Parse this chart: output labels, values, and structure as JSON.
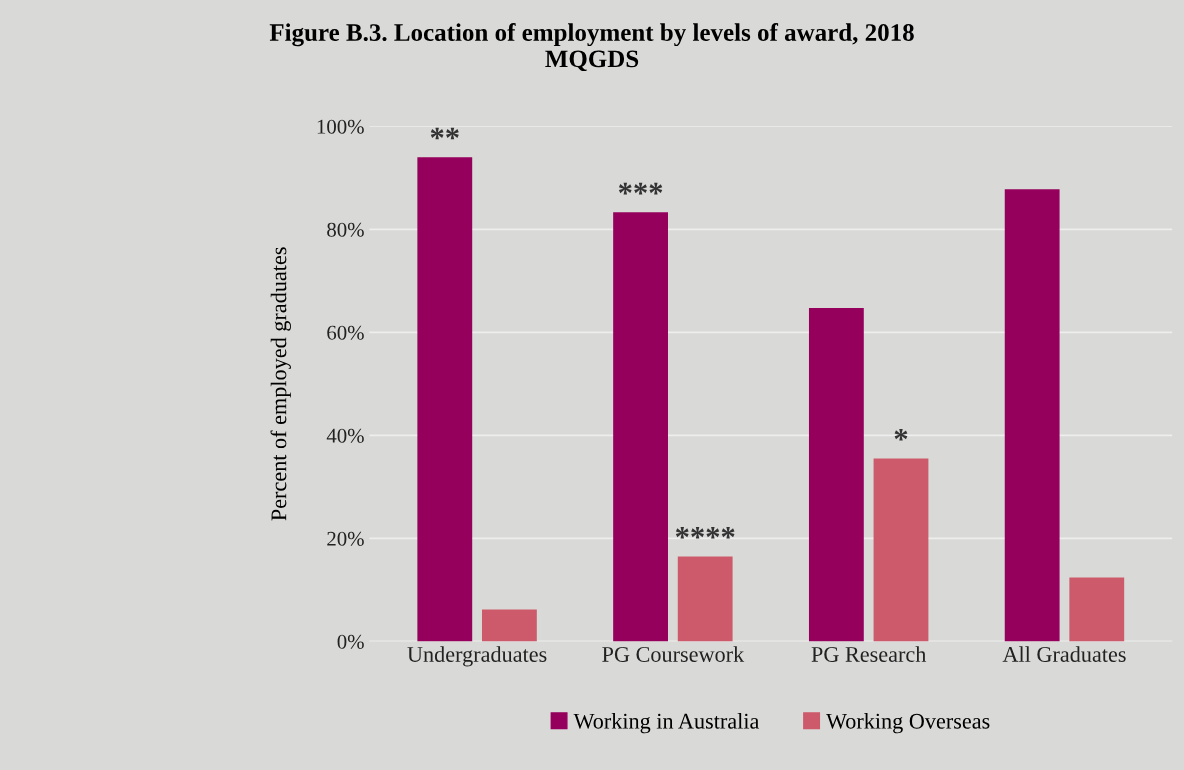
{
  "chart_data": {
    "type": "bar",
    "title": "Figure B.3. Location of employment by levels of award, 2018\nMQGDS",
    "ylabel": "Percent of employed graduates",
    "categories": [
      "Undergraduates",
      "PG Coursework",
      "PG Research",
      "All Graduates"
    ],
    "series": [
      {
        "name": "Working in Australia",
        "color": "#94005c",
        "values": [
          94.0,
          83.3,
          64.7,
          87.8
        ]
      },
      {
        "name": "Working Overseas",
        "color": "#cd5a6b",
        "values": [
          6.2,
          16.5,
          35.5,
          12.4
        ]
      }
    ],
    "ylim": [
      0,
      100
    ],
    "yticks": [
      {
        "value": 0,
        "label": "0%"
      },
      {
        "value": 20,
        "label": "20%"
      },
      {
        "value": 40,
        "label": "40%"
      },
      {
        "value": 60,
        "label": "60%"
      },
      {
        "value": 80,
        "label": "80%"
      },
      {
        "value": 100,
        "label": "100%"
      }
    ],
    "grid": "y",
    "legend": "bottom",
    "annotations": [
      {
        "text": "**",
        "x": "Undergraduates",
        "y": 94.0
      },
      {
        "text": "***",
        "x": "PG Coursework",
        "y": 83.3
      },
      {
        "text": "****",
        "x": "PG Coursework",
        "y": 16.5
      },
      {
        "text": "*",
        "x": "PG Research",
        "y": 35.5
      }
    ]
  }
}
